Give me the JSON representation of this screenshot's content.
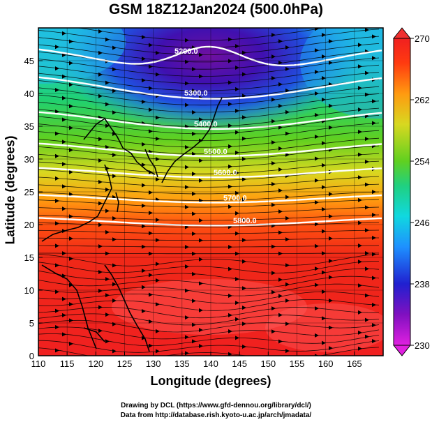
{
  "title": "GSM 18Z12Jan2024 (500.0hPa)",
  "xlabel": "Longitude (degrees)",
  "ylabel": "Latitude  (degrees)",
  "credits": {
    "line1": "Drawing by DCL (https://www.gfd-dennou.org/library/dcl/)",
    "line2": "Data from http://database.rish.kyoto-u.ac.jp/arch/jmadata/"
  },
  "map": {
    "lon_range": [
      110,
      170
    ],
    "lat_range": [
      0,
      50
    ],
    "x_ticks": [
      "110",
      "115",
      "120",
      "125",
      "130",
      "135",
      "140",
      "145",
      "150",
      "155",
      "160",
      "165"
    ],
    "y_ticks": [
      "0",
      "5",
      "10",
      "15",
      "20",
      "25",
      "30",
      "35",
      "40",
      "45"
    ]
  },
  "colorbar": {
    "min": 230,
    "max": 270,
    "labels": [
      "230",
      "238",
      "246",
      "254",
      "262",
      "270"
    ],
    "colors": [
      "#e020e0",
      "#8010c0",
      "#2020d0",
      "#1e90ff",
      "#10d8e0",
      "#20d080",
      "#60d020",
      "#d8d820",
      "#ff9a10",
      "#ff3a10",
      "#f02020"
    ]
  },
  "contours": [
    {
      "label": "5200.0",
      "lat": 45.0
    },
    {
      "label": "5300.0",
      "lat": 41.0
    },
    {
      "label": "5400.0",
      "lat": 36.0
    },
    {
      "label": "5500.0",
      "lat": 31.5
    },
    {
      "label": "5600.0",
      "lat": 28.0
    },
    {
      "label": "5700.0",
      "lat": 24.0
    },
    {
      "label": "5800.0",
      "lat": 20.5
    }
  ]
}
